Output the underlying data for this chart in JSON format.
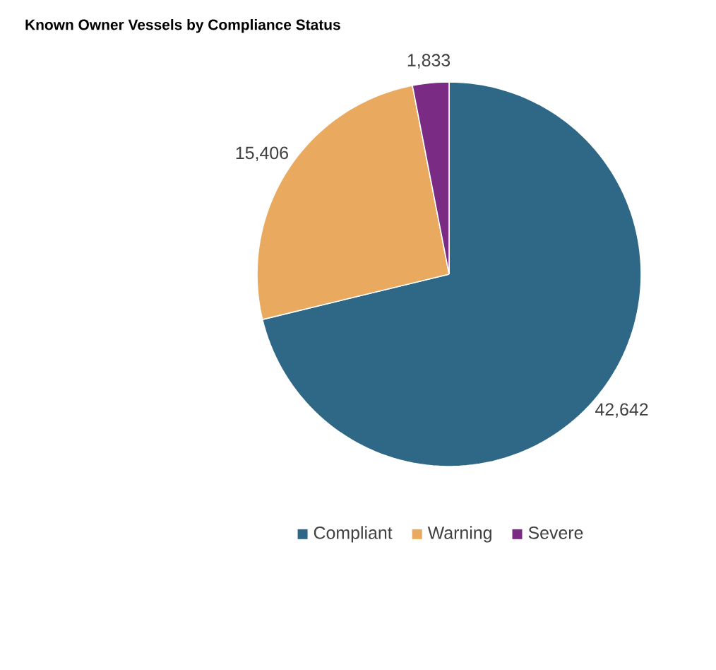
{
  "chart_data": {
    "type": "pie",
    "title": "Known Owner Vessels by Compliance Status",
    "categories": [
      "Compliant",
      "Warning",
      "Severe"
    ],
    "values": [
      42642,
      15406,
      1833
    ],
    "value_labels": [
      "42,642",
      "15,406",
      "1,833"
    ],
    "colors": [
      "#2f6787",
      "#e9a95e",
      "#7a2b84"
    ],
    "legend": "bottom"
  }
}
